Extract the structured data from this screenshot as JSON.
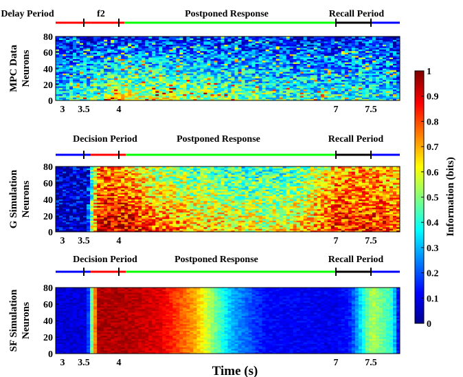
{
  "chart_data": {
    "type": "heatmap",
    "shared": {
      "x_range": [
        3,
        7.9
      ],
      "y_range": [
        0,
        80
      ],
      "x_ticks": [
        3,
        3.5,
        4,
        7,
        7.5
      ],
      "xlabel": "Time (s)"
    },
    "panels": [
      {
        "ylabel_line1": "MPC Data",
        "ylabel_line2": "Neurons",
        "y_ticks": [
          0,
          20,
          40,
          60,
          80
        ],
        "periods": [
          {
            "label": "Delay Period",
            "start": 3.0,
            "end": 3.5,
            "color": "#ff0000"
          },
          {
            "label": "f2",
            "start": 3.5,
            "end": 3.98,
            "color": "#ff0000"
          },
          {
            "label": "Postponed Response",
            "start": 3.98,
            "end": 7.0,
            "color": "#00ff00"
          },
          {
            "label": "Recall Period",
            "start": 7.0,
            "end": 7.5,
            "color": "#000000"
          },
          {
            "label": "",
            "start": 7.5,
            "end": 7.9,
            "color": "#0000ff"
          }
        ],
        "profile_time": [
          3.0,
          3.5,
          3.8,
          4.0,
          5.0,
          6.0,
          7.0,
          7.5,
          7.9
        ],
        "profile_low": [
          0.35,
          0.45,
          0.55,
          0.6,
          0.55,
          0.45,
          0.4,
          0.4,
          0.3
        ],
        "profile_high": [
          0.12,
          0.13,
          0.14,
          0.15,
          0.14,
          0.13,
          0.13,
          0.15,
          0.12
        ]
      },
      {
        "ylabel_line1": "G Simulation",
        "ylabel_line2": "Neurons",
        "y_ticks": [
          0,
          20,
          40,
          60,
          80
        ],
        "periods": [
          {
            "label": "Decision Period",
            "start": 3.0,
            "end": 3.5,
            "color": "#0000ff"
          },
          {
            "label": "",
            "start": 3.5,
            "end": 4.0,
            "color": "#ff0000"
          },
          {
            "label": "Postponed Response",
            "start": 4.0,
            "end": 7.0,
            "color": "#00ff00"
          },
          {
            "label": "Recall Period",
            "start": 7.0,
            "end": 7.5,
            "color": "#000000"
          },
          {
            "label": "",
            "start": 7.5,
            "end": 7.9,
            "color": "#0000ff"
          }
        ],
        "profile_time": [
          3.0,
          3.45,
          3.5,
          3.6,
          4.0,
          4.5,
          5.0,
          6.0,
          6.5,
          7.0,
          7.5,
          7.9
        ],
        "profile_low": [
          0.05,
          0.05,
          0.5,
          0.9,
          0.9,
          0.8,
          0.7,
          0.6,
          0.65,
          0.85,
          0.85,
          0.8
        ],
        "profile_high": [
          0.05,
          0.05,
          0.3,
          0.75,
          0.7,
          0.5,
          0.45,
          0.4,
          0.45,
          0.7,
          0.7,
          0.65
        ]
      },
      {
        "ylabel_line1": "SF Simulation",
        "ylabel_line2": "Neurons",
        "y_ticks": [
          0,
          20,
          40,
          60,
          80
        ],
        "periods": [
          {
            "label": "Decision Period",
            "start": 3.0,
            "end": 3.5,
            "color": "#0000ff"
          },
          {
            "label": "",
            "start": 3.5,
            "end": 4.0,
            "color": "#ff0000"
          },
          {
            "label": "Postponed Response",
            "start": 4.0,
            "end": 7.0,
            "color": "#00ff00"
          },
          {
            "label": "Recall Period",
            "start": 7.0,
            "end": 7.5,
            "color": "#000000"
          },
          {
            "label": "",
            "start": 7.5,
            "end": 7.9,
            "color": "#0000ff"
          }
        ],
        "profile_time": [
          3.0,
          3.45,
          3.5,
          3.6,
          4.0,
          4.5,
          5.0,
          5.5,
          6.0,
          7.0,
          7.2,
          7.5,
          7.8,
          7.9
        ],
        "profile_low": [
          0.08,
          0.08,
          0.4,
          0.95,
          0.95,
          0.9,
          0.7,
          0.3,
          0.12,
          0.1,
          0.15,
          0.55,
          0.4,
          0.05
        ],
        "profile_high": [
          0.08,
          0.08,
          0.4,
          0.95,
          0.95,
          0.9,
          0.7,
          0.3,
          0.12,
          0.1,
          0.15,
          0.55,
          0.4,
          0.05
        ]
      }
    ],
    "colorbar": {
      "label": "Information (bits)",
      "range": [
        0,
        1
      ],
      "ticks": [
        "0",
        "0.1",
        "0.2",
        "0.3",
        "0.4",
        "0.5",
        "0.6",
        "0.7",
        "0.8",
        "0.9",
        "1"
      ],
      "colormap": "jet"
    }
  }
}
